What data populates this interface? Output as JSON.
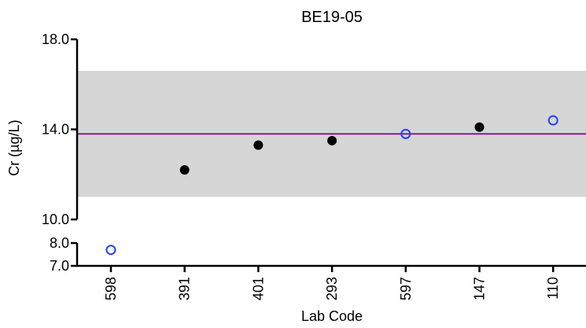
{
  "chart_data": {
    "type": "scatter",
    "title": "BE19-05",
    "xlabel": "Lab Code",
    "ylabel": "Cr (µg/L)",
    "categories": [
      "598",
      "391",
      "401",
      "293",
      "597",
      "147",
      "110"
    ],
    "y_axis_upper": {
      "ylim": [
        10.0,
        18.0
      ],
      "ticks": [
        "10.0",
        "14.0",
        "18.0"
      ]
    },
    "y_axis_lower": {
      "ylim": [
        7.0,
        8.0
      ],
      "ticks": [
        "7.0",
        "8.0"
      ]
    },
    "reference_line": 13.8,
    "shaded_band": [
      11.0,
      16.6
    ],
    "points": [
      {
        "lab": "598",
        "value": 7.7,
        "marker": "open"
      },
      {
        "lab": "391",
        "value": 12.2,
        "marker": "filled"
      },
      {
        "lab": "401",
        "value": 13.3,
        "marker": "filled"
      },
      {
        "lab": "293",
        "value": 13.5,
        "marker": "filled"
      },
      {
        "lab": "597",
        "value": 13.8,
        "marker": "open"
      },
      {
        "lab": "147",
        "value": 14.1,
        "marker": "filled"
      },
      {
        "lab": "110",
        "value": 14.4,
        "marker": "open"
      }
    ],
    "colors": {
      "band": "#d6d6d6",
      "reference_line": "#8b1a8b",
      "filled_marker": "#000000",
      "open_marker": "#1f3fff"
    }
  }
}
